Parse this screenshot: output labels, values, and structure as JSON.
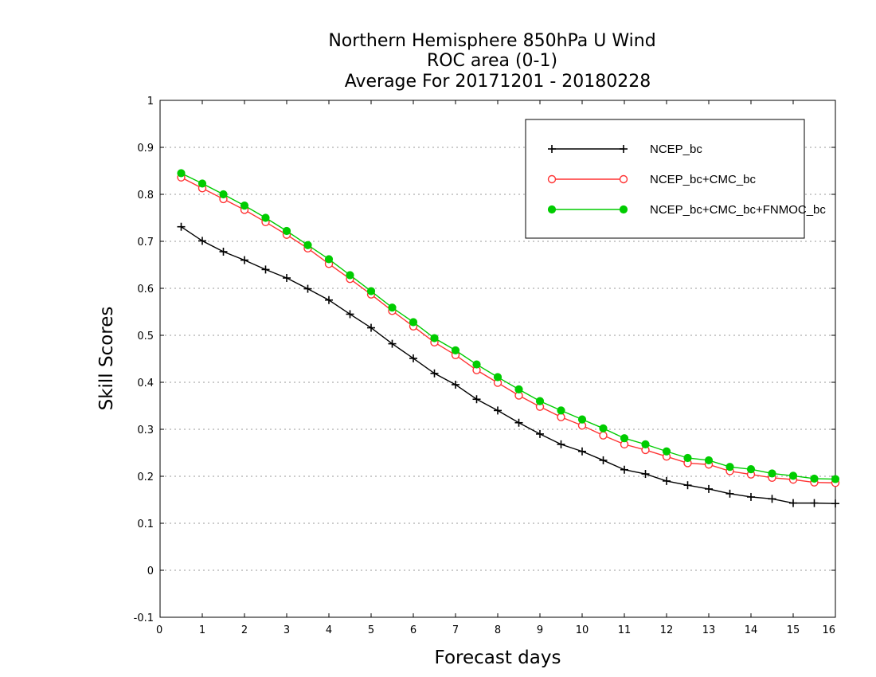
{
  "chart_data": {
    "type": "line",
    "title": [
      "Northern Hemisphere 850hPa U Wind",
      "ROC area (0-1)",
      "Average For 20171201 - 20180228"
    ],
    "xlabel": "Forecast days",
    "ylabel": "Skill Scores",
    "xlim": [
      0,
      16
    ],
    "ylim": [
      -0.1,
      1
    ],
    "xticks": [
      0,
      1,
      2,
      3,
      4,
      5,
      6,
      7,
      8,
      9,
      10,
      11,
      12,
      13,
      14,
      15,
      16
    ],
    "yticks": [
      -0.1,
      0,
      0.1,
      0.2,
      0.3,
      0.4,
      0.5,
      0.6,
      0.7,
      0.8,
      0.9,
      1
    ],
    "ytick_labels": [
      "-0.1",
      "0",
      "0.1",
      "0.2",
      "0.3",
      "0.4",
      "0.5",
      "0.6",
      "0.7",
      "0.8",
      "0.9",
      "1"
    ],
    "grid": "horizontal dotted",
    "legend_position": "top-right",
    "x": [
      0.5,
      1,
      1.5,
      2,
      2.5,
      3,
      3.5,
      4,
      4.5,
      5,
      5.5,
      6,
      6.5,
      7,
      7.5,
      8,
      8.5,
      9,
      9.5,
      10,
      10.5,
      11,
      11.5,
      12,
      12.5,
      13,
      13.5,
      14,
      14.5,
      15,
      15.5,
      16
    ],
    "series": [
      {
        "name": "NCEP_bc",
        "color": "#000000",
        "marker": "plus",
        "values": [
          0.731,
          0.701,
          0.678,
          0.66,
          0.64,
          0.622,
          0.599,
          0.575,
          0.545,
          0.516,
          0.482,
          0.451,
          0.419,
          0.395,
          0.364,
          0.34,
          0.314,
          0.29,
          0.268,
          0.253,
          0.234,
          0.214,
          0.205,
          0.19,
          0.181,
          0.173,
          0.163,
          0.156,
          0.152,
          0.143,
          0.143,
          0.142
        ]
      },
      {
        "name": "NCEP_bc+CMC_bc",
        "color": "#ff3333",
        "marker": "open-circle",
        "values": [
          0.836,
          0.813,
          0.79,
          0.767,
          0.741,
          0.714,
          0.685,
          0.652,
          0.62,
          0.587,
          0.552,
          0.519,
          0.485,
          0.458,
          0.426,
          0.399,
          0.372,
          0.348,
          0.326,
          0.308,
          0.287,
          0.268,
          0.256,
          0.242,
          0.228,
          0.225,
          0.211,
          0.204,
          0.197,
          0.193,
          0.187,
          0.186
        ]
      },
      {
        "name": "NCEP_bc+CMC_bc+FNMOC_bc",
        "color": "#00cc00",
        "marker": "filled-circle",
        "values": [
          0.845,
          0.823,
          0.8,
          0.776,
          0.75,
          0.722,
          0.692,
          0.662,
          0.628,
          0.594,
          0.559,
          0.528,
          0.494,
          0.468,
          0.438,
          0.411,
          0.385,
          0.36,
          0.34,
          0.321,
          0.302,
          0.281,
          0.268,
          0.253,
          0.239,
          0.234,
          0.22,
          0.215,
          0.206,
          0.201,
          0.195,
          0.194
        ]
      }
    ]
  }
}
